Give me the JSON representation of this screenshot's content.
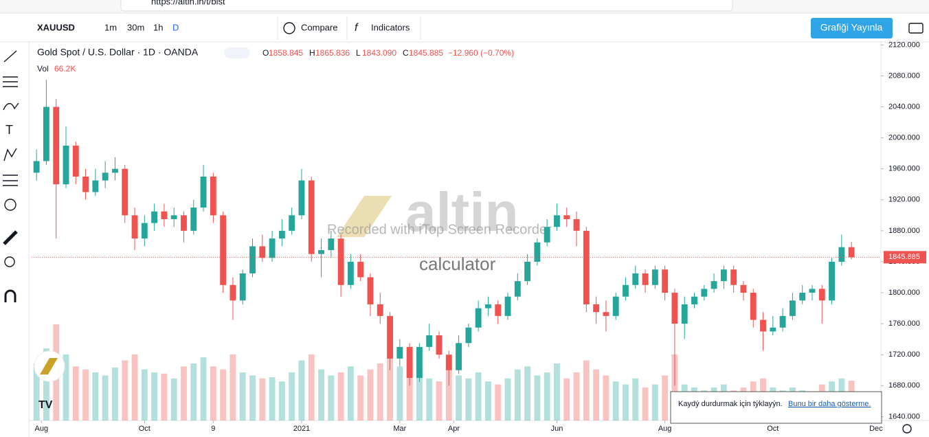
{
  "browser": {
    "url": "https://altin.in/t/bist"
  },
  "toolbar": {
    "symbol": "XAUUSD",
    "intervals": [
      "1m",
      "30m",
      "1h",
      "D"
    ],
    "compare": "Compare",
    "indicators": "Indicators",
    "publish": "Grafiği Yayınla"
  },
  "chart_data": {
    "type": "candlestick",
    "title": "Gold Spot / U.S. Dollar · 1D · OANDA",
    "ohlc_labels": [
      "O",
      "H",
      "L",
      "C"
    ],
    "ohlc_value_labels": [
      "1858.845",
      "1865.836",
      "1843.090",
      "1845.885"
    ],
    "change": "−12.960 (−0.70%)",
    "volume_title": "Vol",
    "volume_label": "66.2K",
    "up_color": "#26a69a",
    "down_color": "#ef5350",
    "open": [
      1955,
      1970,
      2040,
      1940,
      1990,
      1950,
      1930,
      1945,
      1955,
      1960,
      1900,
      1870,
      1890,
      1905,
      1895,
      1900,
      1880,
      1910,
      1950,
      1900,
      1810,
      1790,
      1825,
      1860,
      1845,
      1870,
      1880,
      1900,
      1945,
      1850,
      1855,
      1870,
      1810,
      1840,
      1820,
      1785,
      1770,
      1715,
      1730,
      1690,
      1730,
      1745,
      1720,
      1700,
      1735,
      1755,
      1780,
      1785,
      1770,
      1795,
      1815,
      1840,
      1865,
      1885,
      1900,
      1895,
      1880,
      1785,
      1775,
      1770,
      1795,
      1810,
      1825,
      1810,
      1830,
      1800,
      1760,
      1785,
      1795,
      1805,
      1815,
      1830,
      1810,
      1800,
      1765,
      1750,
      1755,
      1770,
      1790,
      1800,
      1805,
      1790,
      1840,
      1858.845
    ],
    "high": [
      1985,
      2075,
      2050,
      2015,
      1995,
      1960,
      1960,
      1970,
      1975,
      1965,
      1910,
      1900,
      1915,
      1915,
      1910,
      1905,
      1920,
      1965,
      1955,
      1905,
      1820,
      1830,
      1870,
      1875,
      1880,
      1895,
      1910,
      1960,
      1950,
      1870,
      1880,
      1875,
      1850,
      1850,
      1825,
      1800,
      1775,
      1740,
      1735,
      1735,
      1760,
      1750,
      1725,
      1745,
      1760,
      1790,
      1795,
      1790,
      1800,
      1825,
      1850,
      1870,
      1895,
      1915,
      1910,
      1905,
      1885,
      1795,
      1790,
      1800,
      1820,
      1835,
      1830,
      1835,
      1835,
      1805,
      1795,
      1800,
      1810,
      1825,
      1835,
      1835,
      1815,
      1805,
      1775,
      1770,
      1780,
      1800,
      1810,
      1810,
      1810,
      1845,
      1875,
      1865.836
    ],
    "low": [
      1945,
      1965,
      1870,
      1935,
      1940,
      1920,
      1925,
      1935,
      1945,
      1890,
      1855,
      1860,
      1880,
      1885,
      1885,
      1865,
      1875,
      1905,
      1890,
      1800,
      1765,
      1785,
      1820,
      1840,
      1840,
      1860,
      1875,
      1895,
      1840,
      1820,
      1845,
      1795,
      1805,
      1815,
      1770,
      1760,
      1700,
      1705,
      1680,
      1685,
      1725,
      1715,
      1680,
      1695,
      1730,
      1750,
      1770,
      1760,
      1765,
      1790,
      1810,
      1835,
      1860,
      1880,
      1885,
      1860,
      1775,
      1760,
      1750,
      1765,
      1790,
      1805,
      1800,
      1805,
      1790,
      1680,
      1740,
      1780,
      1790,
      1800,
      1805,
      1800,
      1790,
      1755,
      1725,
      1745,
      1750,
      1765,
      1785,
      1790,
      1760,
      1785,
      1835,
      1843.09
    ],
    "close": [
      1970,
      2040,
      1940,
      1990,
      1950,
      1930,
      1945,
      1955,
      1960,
      1900,
      1870,
      1890,
      1905,
      1895,
      1900,
      1880,
      1910,
      1950,
      1900,
      1810,
      1790,
      1825,
      1860,
      1845,
      1870,
      1880,
      1900,
      1945,
      1850,
      1855,
      1870,
      1810,
      1840,
      1820,
      1785,
      1770,
      1715,
      1730,
      1690,
      1730,
      1745,
      1720,
      1700,
      1735,
      1755,
      1780,
      1785,
      1770,
      1795,
      1815,
      1840,
      1865,
      1885,
      1900,
      1895,
      1880,
      1785,
      1775,
      1770,
      1795,
      1810,
      1825,
      1810,
      1830,
      1800,
      1760,
      1785,
      1795,
      1805,
      1815,
      1830,
      1810,
      1800,
      1765,
      1750,
      1755,
      1770,
      1790,
      1800,
      1805,
      1790,
      1840,
      1858.845,
      1845.885
    ],
    "volume": [
      95000,
      120000,
      160000,
      110000,
      90000,
      85000,
      80000,
      75000,
      88000,
      100000,
      110000,
      85000,
      80000,
      78000,
      70000,
      90000,
      95000,
      105000,
      90000,
      85000,
      110000,
      80000,
      75000,
      70000,
      72000,
      65000,
      80000,
      100000,
      110000,
      85000,
      75000,
      80000,
      90000,
      75000,
      85000,
      95000,
      105000,
      90000,
      100000,
      80000,
      70000,
      65000,
      85000,
      75000,
      70000,
      80000,
      65000,
      60000,
      70000,
      85000,
      90000,
      75000,
      80000,
      95000,
      70000,
      80000,
      100000,
      85000,
      75000,
      65000,
      60000,
      70000,
      55000,
      60000,
      75000,
      110000,
      60000,
      55000,
      50000,
      55000,
      60000,
      50000,
      55000,
      65000,
      70000,
      55000,
      50000,
      55000,
      50000,
      45000,
      60000,
      65000,
      70000,
      66200
    ],
    "xlim": [
      -0.5,
      86
    ],
    "xticks": [
      {
        "value": 0.5,
        "label": "Aug"
      },
      {
        "value": 11,
        "label": "Oct"
      },
      {
        "value": 18,
        "label": "9"
      },
      {
        "value": 27,
        "label": "2021"
      },
      {
        "value": 37,
        "label": "Mar"
      },
      {
        "value": 42.5,
        "label": "Apr"
      },
      {
        "value": 53,
        "label": "Jun"
      },
      {
        "value": 64,
        "label": "Aug"
      },
      {
        "value": 75,
        "label": "Oct"
      },
      {
        "value": 85.5,
        "label": "Dec"
      }
    ],
    "ylim": [
      1635,
      2123
    ],
    "yticks": [
      {
        "value": 1640,
        "label": "1640.000"
      },
      {
        "value": 1680,
        "label": "1680.000"
      },
      {
        "value": 1720,
        "label": "1720.000"
      },
      {
        "value": 1760,
        "label": "1760.000"
      },
      {
        "value": 1800,
        "label": "1800.000"
      },
      {
        "value": 1840,
        "label": "1840.000"
      },
      {
        "value": 1880,
        "label": "1880.000"
      },
      {
        "value": 1920,
        "label": "1920.000"
      },
      {
        "value": 1960,
        "label": "1960.000"
      },
      {
        "value": 2000,
        "label": "2000.000"
      },
      {
        "value": 2040,
        "label": "2040.000"
      },
      {
        "value": 2080,
        "label": "2080.000"
      },
      {
        "value": 2120,
        "label": "2120.000"
      }
    ],
    "grid": true
  },
  "watermark": {
    "brand": "altin",
    "sub": "calculator",
    "recorder": "Recorded with iTop Screen Recorder"
  },
  "notification": {
    "text": "Kaydý durdurmak için týklayýn.",
    "link": "Bunu bir daha gösterme."
  }
}
